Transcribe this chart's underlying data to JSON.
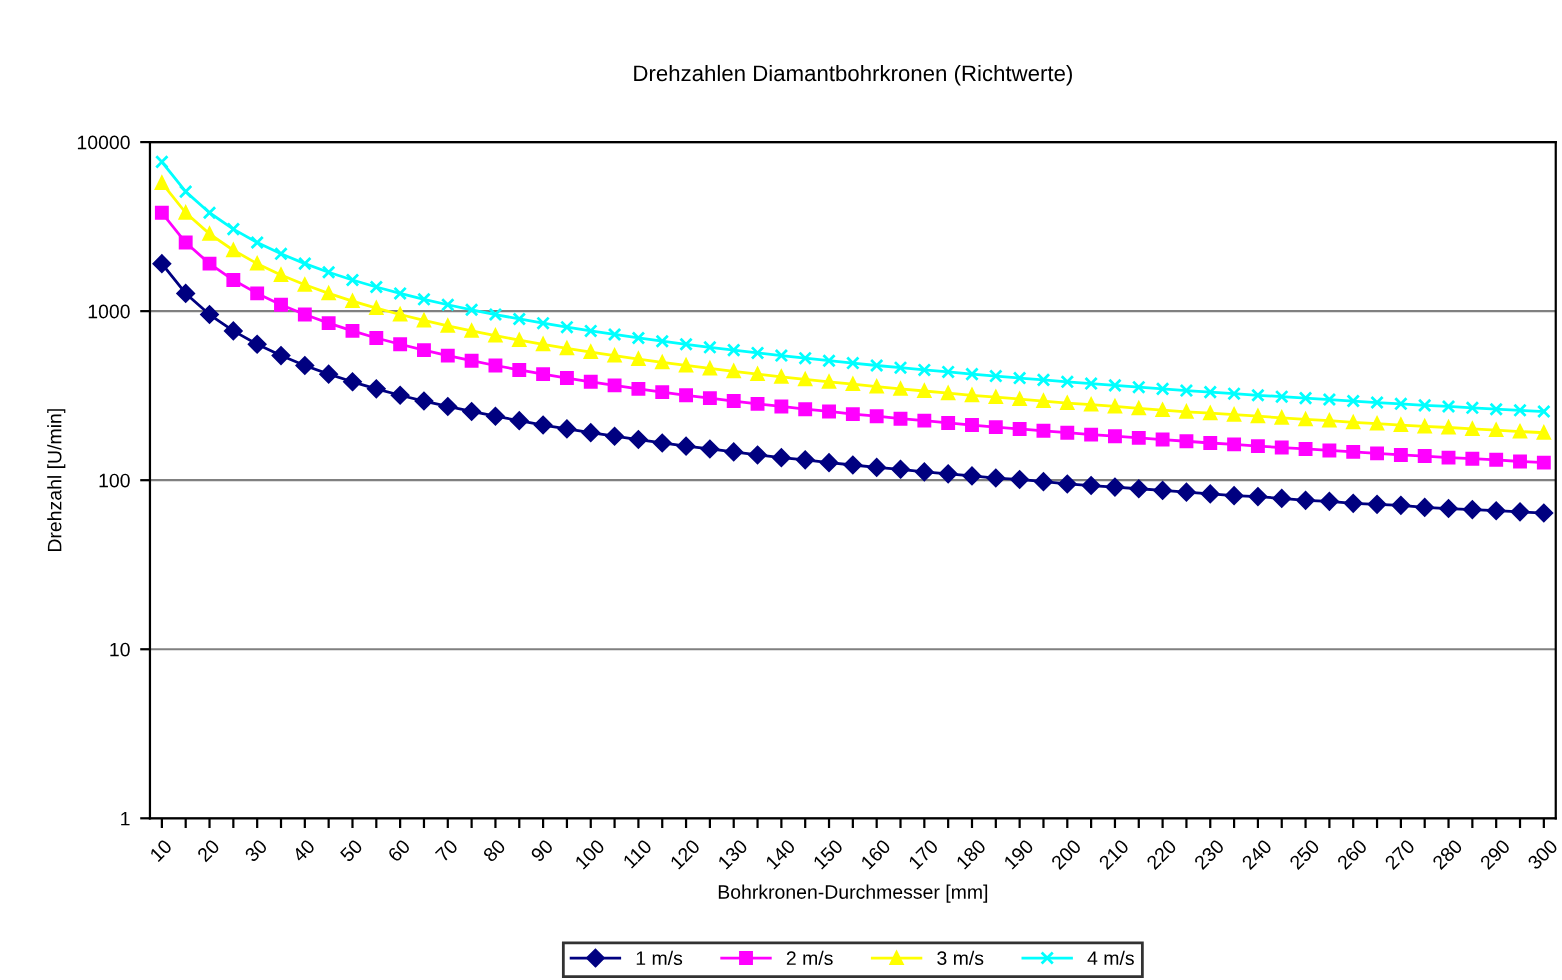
{
  "chart_data": {
    "type": "line",
    "title": "Drehzahlen Diamantbohrkronen (Richtwerte)",
    "xlabel": "Bohrkronen-Durchmesser [mm]",
    "ylabel": "Drehzahl [U/min]",
    "categories": [
      "10",
      null,
      "20",
      null,
      "30",
      null,
      "40",
      null,
      "50",
      null,
      "60",
      null,
      "70",
      null,
      "80",
      null,
      "90",
      null,
      "100",
      null,
      "110",
      null,
      "120",
      null,
      "130",
      null,
      "140",
      null,
      "150",
      null,
      "160",
      null,
      "170",
      null,
      "180",
      null,
      "190",
      null,
      "200",
      null,
      "210",
      null,
      "220",
      null,
      "230",
      null,
      "240",
      null,
      "250",
      null,
      "260",
      null,
      "270",
      null,
      "280",
      null,
      "290",
      null,
      "300"
    ],
    "series": [
      {
        "name": "1 m/s",
        "color": "#000080",
        "marker": "diamond",
        "values": [
          1910,
          1273,
          955,
          764,
          637,
          546,
          477,
          424,
          382,
          347,
          318,
          294,
          273,
          255,
          239,
          225,
          212,
          201,
          191,
          182,
          174,
          166,
          159,
          153,
          147,
          141,
          136,
          132,
          127,
          123,
          119,
          116,
          112,
          109,
          106,
          103,
          101,
          98,
          95,
          93,
          91,
          89,
          87,
          85,
          83,
          81,
          80,
          78,
          76,
          75,
          73,
          72,
          71,
          69,
          68,
          67,
          66,
          65,
          64
        ]
      },
      {
        "name": "2 m/s",
        "color": "#ff00ff",
        "marker": "square",
        "values": [
          3820,
          2546,
          1910,
          1528,
          1273,
          1091,
          955,
          849,
          764,
          694,
          637,
          588,
          546,
          509,
          477,
          449,
          424,
          402,
          382,
          364,
          347,
          332,
          318,
          306,
          294,
          283,
          273,
          263,
          255,
          246,
          239,
          231,
          225,
          218,
          212,
          206,
          201,
          196,
          191,
          186,
          182,
          178,
          174,
          170,
          166,
          163,
          159,
          156,
          153,
          150,
          147,
          144,
          141,
          139,
          136,
          134,
          132,
          129,
          127
        ]
      },
      {
        "name": "3 m/s",
        "color": "#ffff00",
        "marker": "triangle",
        "values": [
          5730,
          3820,
          2865,
          2292,
          1910,
          1637,
          1432,
          1273,
          1146,
          1042,
          955,
          881,
          819,
          764,
          716,
          674,
          637,
          603,
          573,
          546,
          521,
          498,
          477,
          458,
          441,
          424,
          409,
          395,
          382,
          370,
          358,
          347,
          337,
          327,
          318,
          310,
          302,
          294,
          286,
          280,
          273,
          266,
          260,
          254,
          249,
          244,
          239,
          234,
          229,
          225,
          220,
          216,
          212,
          208,
          205,
          201,
          198,
          194,
          191
        ]
      },
      {
        "name": "4 m/s",
        "color": "#00ffff",
        "marker": "cross",
        "values": [
          7640,
          5093,
          3820,
          3056,
          2546,
          2183,
          1910,
          1698,
          1528,
          1389,
          1273,
          1175,
          1091,
          1019,
          955,
          899,
          849,
          804,
          764,
          728,
          694,
          664,
          637,
          611,
          588,
          566,
          546,
          527,
          509,
          493,
          477,
          463,
          449,
          437,
          424,
          413,
          402,
          392,
          382,
          373,
          364,
          355,
          347,
          339,
          332,
          325,
          318,
          312,
          306,
          300,
          294,
          288,
          283,
          277,
          273,
          268,
          263,
          259,
          255
        ]
      }
    ],
    "log": "y",
    "ylim": [
      1,
      10000
    ],
    "yticks": [
      1,
      10,
      100,
      1000,
      10000
    ],
    "grid": "y",
    "legend": "bottom",
    "line_style": "solid"
  }
}
